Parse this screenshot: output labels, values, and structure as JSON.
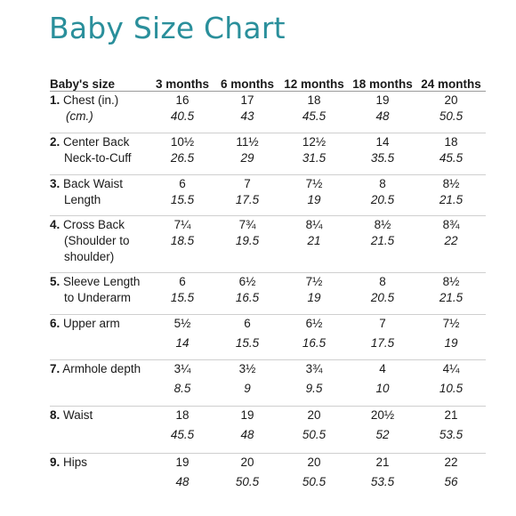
{
  "title": "Baby Size Chart",
  "accent_color": "#2a8f9b",
  "columns": [
    "Baby's size",
    "3 months",
    "6 months",
    "12 months",
    "18 months",
    "24 months"
  ],
  "rows": [
    {
      "num": "1.",
      "label": [
        "Chest (in.)",
        "(cm.)"
      ],
      "imperial": [
        "16",
        "17",
        "18",
        "19",
        "20"
      ],
      "metric": [
        "40.5",
        "43",
        "45.5",
        "48",
        "50.5"
      ]
    },
    {
      "num": "2.",
      "label": [
        "Center Back",
        "Neck-to-Cuff"
      ],
      "imperial": [
        "10½",
        "11½",
        "12½",
        "14",
        "18"
      ],
      "metric": [
        "26.5",
        "29",
        "31.5",
        "35.5",
        "45.5"
      ]
    },
    {
      "num": "3.",
      "label": [
        "Back Waist",
        "Length"
      ],
      "imperial": [
        "6",
        "7",
        "7½",
        "8",
        "8½"
      ],
      "metric": [
        "15.5",
        "17.5",
        "19",
        "20.5",
        "21.5"
      ]
    },
    {
      "num": "4.",
      "label": [
        "Cross Back",
        "(Shoulder to",
        "shoulder)"
      ],
      "imperial": [
        "7¼",
        "7¾",
        "8¼",
        "8½",
        "8¾"
      ],
      "metric": [
        "18.5",
        "19.5",
        "21",
        "21.5",
        "22"
      ]
    },
    {
      "num": "5.",
      "label": [
        "Sleeve Length",
        "to Underarm"
      ],
      "imperial": [
        "6",
        "6½",
        "7½",
        "8",
        "8½"
      ],
      "metric": [
        "15.5",
        "16.5",
        "19",
        "20.5",
        "21.5"
      ]
    },
    {
      "num": "6.",
      "label": [
        "Upper arm"
      ],
      "imperial": [
        "5½",
        "6",
        "6½",
        "7",
        "7½"
      ],
      "metric": [
        "14",
        "15.5",
        "16.5",
        "17.5",
        "19"
      ]
    },
    {
      "num": "7.",
      "label": [
        "Armhole depth"
      ],
      "imperial": [
        "3¼",
        "3½",
        "3¾",
        "4",
        "4¼"
      ],
      "metric": [
        "8.5",
        "9",
        "9.5",
        "10",
        "10.5"
      ]
    },
    {
      "num": "8.",
      "label": [
        "Waist"
      ],
      "imperial": [
        "18",
        "19",
        "20",
        "20½",
        "21"
      ],
      "metric": [
        "45.5",
        "48",
        "50.5",
        "52",
        "53.5"
      ]
    },
    {
      "num": "9.",
      "label": [
        "Hips"
      ],
      "imperial": [
        "19",
        "20",
        "20",
        "21",
        "22"
      ],
      "metric": [
        "48",
        "50.5",
        "50.5",
        "53.5",
        "56"
      ]
    }
  ]
}
